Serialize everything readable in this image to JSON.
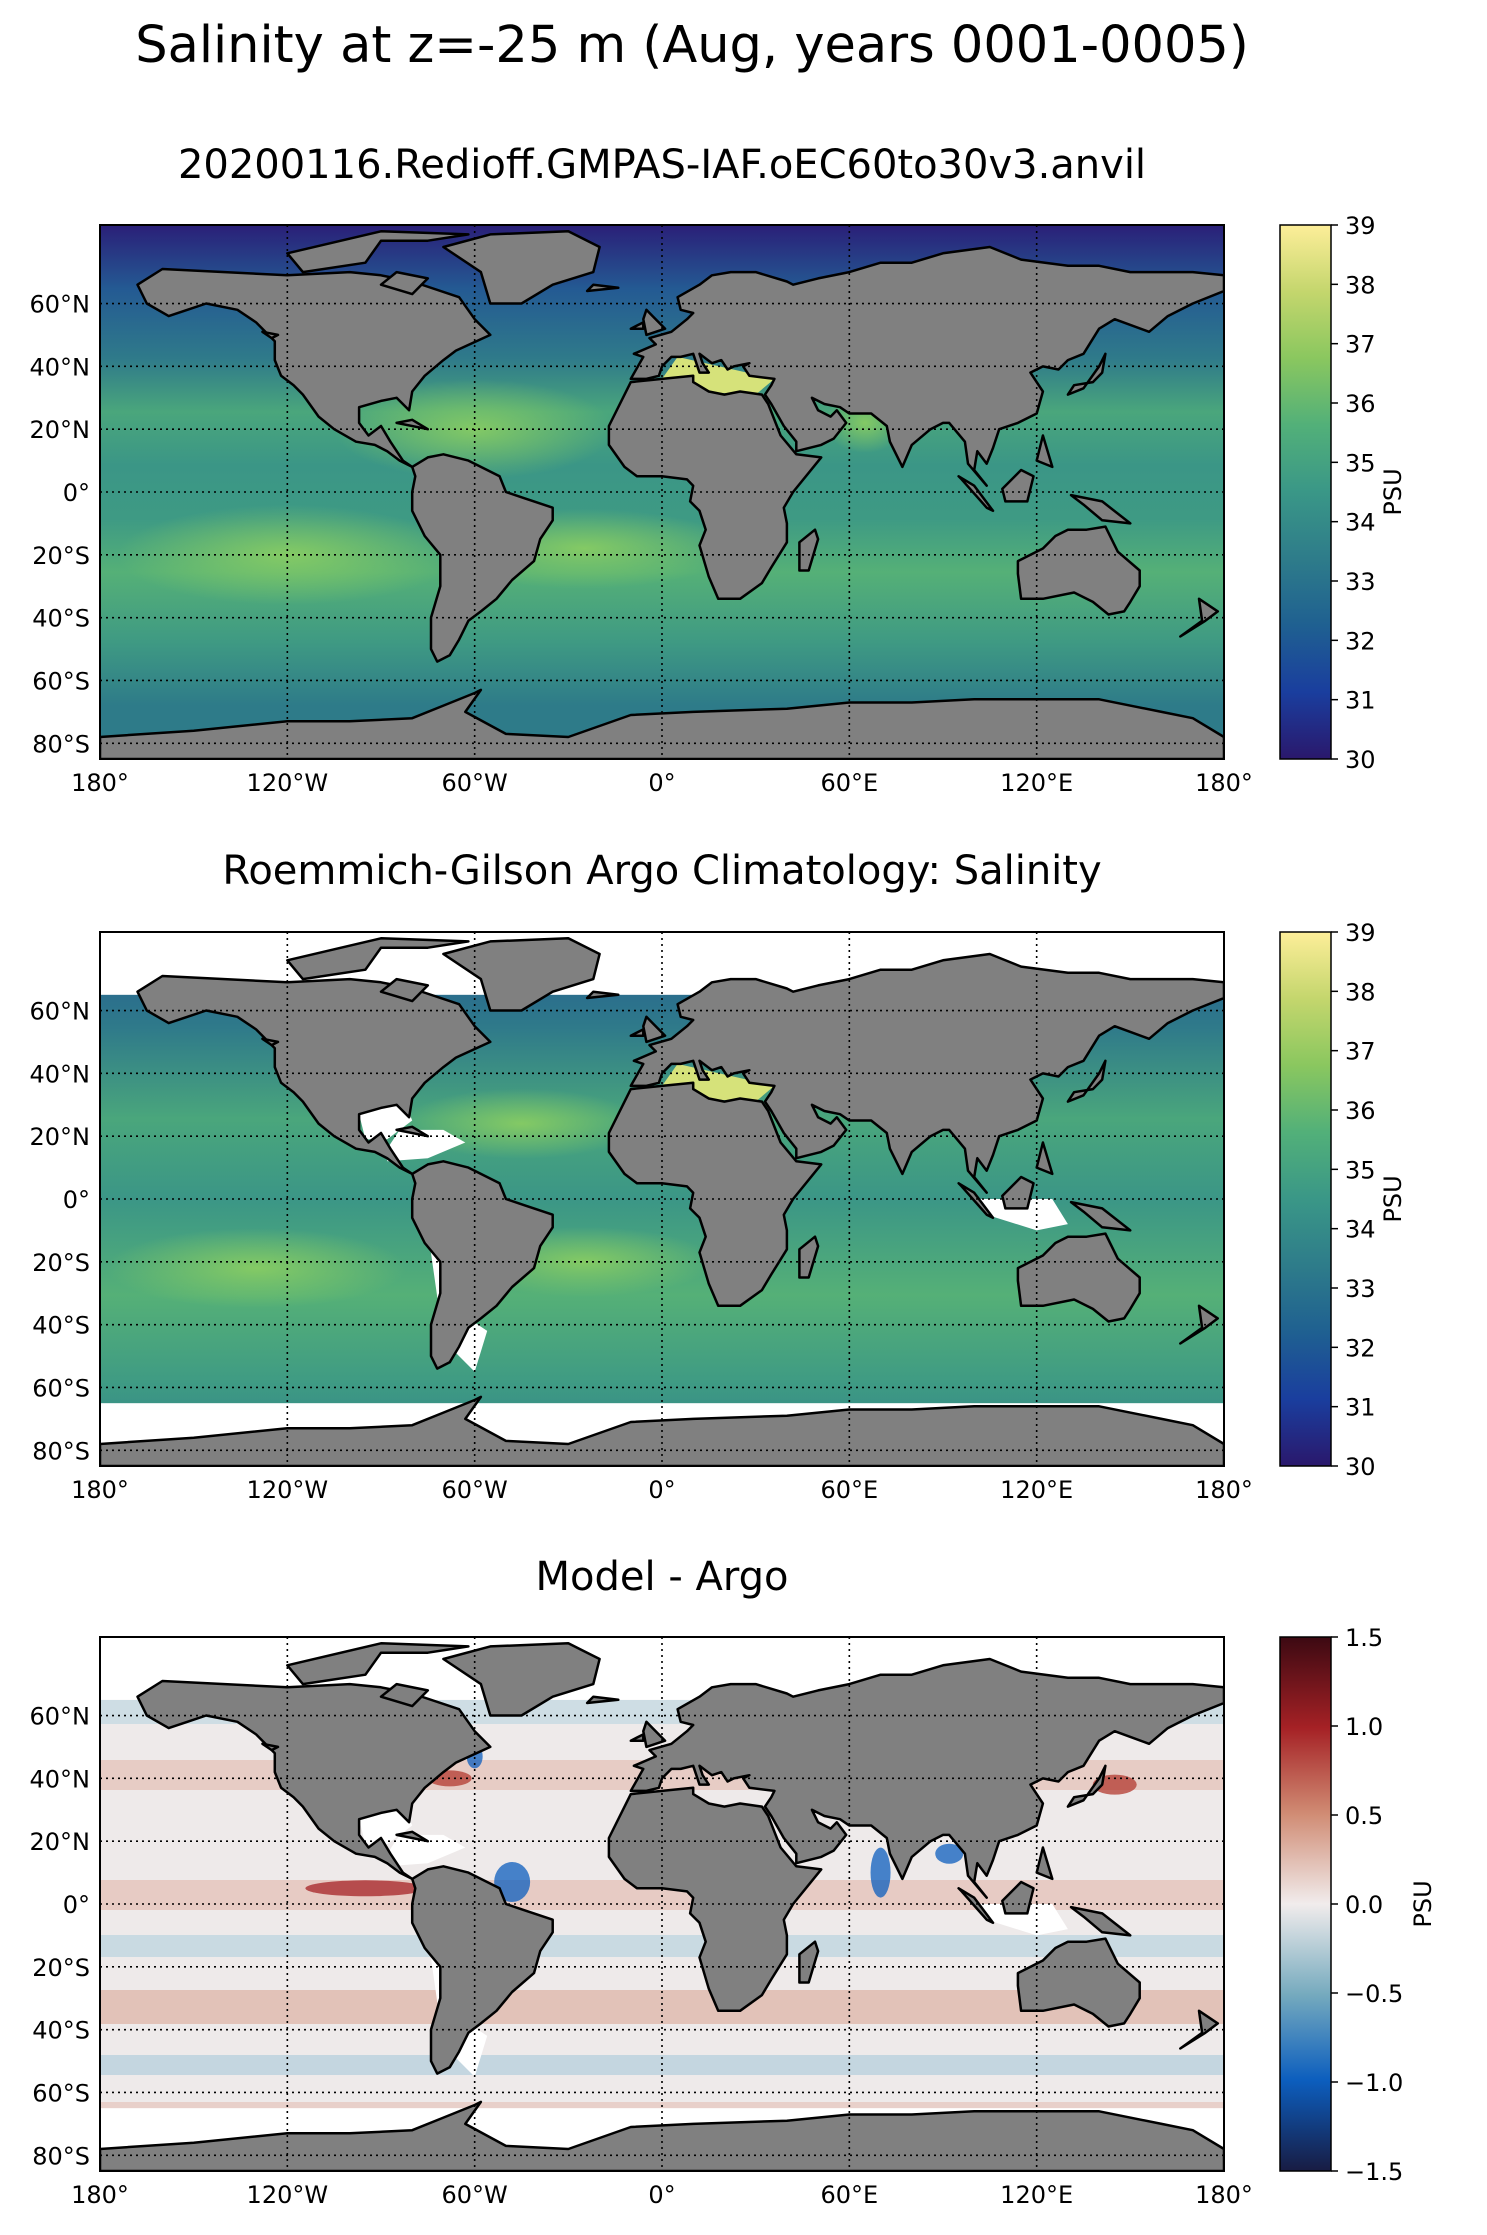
{
  "suptitle": "Salinity at z=-25 m (Aug, years 0001-0005)",
  "colors": {
    "land": "#808080",
    "grid": "#000000",
    "missing": "#ffffff",
    "haline": [
      "#2a186c",
      "#1a3e9e",
      "#1f6091",
      "#2e7c8a",
      "#3a9787",
      "#52b079",
      "#8ac75f",
      "#c4d66d",
      "#fdee99"
    ],
    "balance": [
      "#181c43",
      "#0c5ebe",
      "#75aabe",
      "#f1ecec",
      "#d08b73",
      "#a52125",
      "#3c0912"
    ]
  },
  "chart_data": [
    {
      "type": "heatmap",
      "title": "20200116.Redioff.GMPAS-IAF.oEC60to30v3.anvil",
      "xlabel": "",
      "ylabel": "",
      "xlim": [
        -180,
        180
      ],
      "ylim": [
        -85,
        85
      ],
      "xticks": [
        -180,
        -120,
        -60,
        0,
        60,
        120,
        180
      ],
      "xticklabels": [
        "180°",
        "120°W",
        "60°W",
        "0°",
        "60°E",
        "120°E",
        "180°"
      ],
      "yticks": [
        60,
        40,
        20,
        0,
        -20,
        -40,
        -60,
        -80
      ],
      "yticklabels": [
        "60°N",
        "40°N",
        "20°N",
        "0°",
        "20°S",
        "40°S",
        "60°S",
        "80°S"
      ],
      "grid": true,
      "colormap": "haline",
      "colorbar": {
        "label": "PSU",
        "range": [
          30,
          39
        ],
        "ticks": [
          30,
          31,
          32,
          33,
          34,
          35,
          36,
          37,
          38,
          39
        ]
      }
    },
    {
      "type": "heatmap",
      "title": "Roemmich-Gilson Argo Climatology: Salinity",
      "xlabel": "",
      "ylabel": "",
      "xlim": [
        -180,
        180
      ],
      "ylim": [
        -85,
        85
      ],
      "xticks": [
        -180,
        -120,
        -60,
        0,
        60,
        120,
        180
      ],
      "xticklabels": [
        "180°",
        "120°W",
        "60°W",
        "0°",
        "60°E",
        "120°E",
        "180°"
      ],
      "yticks": [
        60,
        40,
        20,
        0,
        -20,
        -40,
        -60,
        -80
      ],
      "yticklabels": [
        "60°N",
        "40°N",
        "20°N",
        "0°",
        "20°S",
        "40°S",
        "60°S",
        "80°S"
      ],
      "grid": true,
      "colormap": "haline",
      "data_coverage_lat": [
        -65,
        65
      ],
      "colorbar": {
        "label": "PSU",
        "range": [
          30,
          39
        ],
        "ticks": [
          30,
          31,
          32,
          33,
          34,
          35,
          36,
          37,
          38,
          39
        ]
      }
    },
    {
      "type": "heatmap",
      "title": "Model - Argo",
      "xlabel": "",
      "ylabel": "",
      "xlim": [
        -180,
        180
      ],
      "ylim": [
        -85,
        85
      ],
      "xticks": [
        -180,
        -120,
        -60,
        0,
        60,
        120,
        180
      ],
      "xticklabels": [
        "180°",
        "120°W",
        "60°W",
        "0°",
        "60°E",
        "120°E",
        "180°"
      ],
      "yticks": [
        60,
        40,
        20,
        0,
        -20,
        -40,
        -60,
        -80
      ],
      "yticklabels": [
        "60°N",
        "40°N",
        "20°N",
        "0°",
        "20°S",
        "40°S",
        "60°S",
        "80°S"
      ],
      "grid": true,
      "colormap": "balance",
      "data_coverage_lat": [
        -65,
        65
      ],
      "colorbar": {
        "label": "PSU",
        "range": [
          -1.5,
          1.5
        ],
        "ticks": [
          -1.5,
          -1.0,
          -0.5,
          0.0,
          0.5,
          1.0,
          1.5
        ],
        "ticklabels": [
          "−1.5",
          "−1.0",
          "−0.5",
          "0.0",
          "0.5",
          "1.0",
          "1.5"
        ]
      }
    }
  ]
}
